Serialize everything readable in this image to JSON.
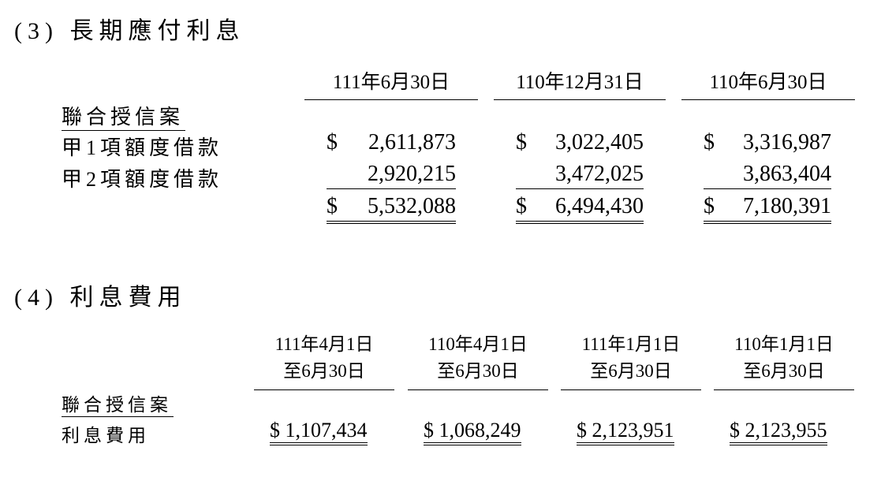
{
  "section3": {
    "title": "(3) 長期應付利息",
    "columns": [
      "111年6月30日",
      "110年12月31日",
      "110年6月30日"
    ],
    "group_label": "聯合授信案",
    "rows": [
      {
        "label": "甲1項額度借款",
        "currency": "$",
        "values": [
          "2,611,873",
          "3,022,405",
          "3,316,987"
        ]
      },
      {
        "label": "甲2項額度借款",
        "currency": "",
        "values": [
          "2,920,215",
          "3,472,025",
          "3,863,404"
        ]
      }
    ],
    "totals": {
      "currency": "$",
      "values": [
        "5,532,088",
        "6,494,430",
        "7,180,391"
      ]
    }
  },
  "section4": {
    "title": "(4) 利息費用",
    "columns": [
      {
        "line1": "111年4月1日",
        "line2": "至6月30日"
      },
      {
        "line1": "110年4月1日",
        "line2": "至6月30日"
      },
      {
        "line1": "111年1月1日",
        "line2": "至6月30日"
      },
      {
        "line1": "110年1月1日",
        "line2": "至6月30日"
      }
    ],
    "group_label": "聯合授信案",
    "row_label": "利息費用",
    "values": [
      "$ 1,107,434",
      "$ 1,068,249",
      "$ 2,123,951",
      "$ 2,123,955"
    ]
  }
}
